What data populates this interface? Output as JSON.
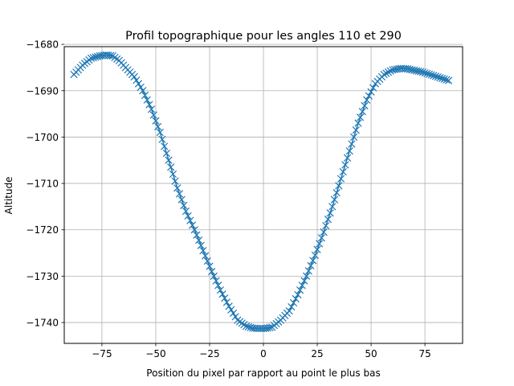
{
  "chart_data": {
    "type": "line",
    "title": "Profil topographique pour les angles 110 et 290",
    "xlabel": "Position du pixel par rapport au point le plus bas",
    "ylabel": "Altitude",
    "xlim": [
      -92.5,
      92.5
    ],
    "ylim": [
      -1744.5,
      -1680.5
    ],
    "xticks": [
      -75,
      -50,
      -25,
      0,
      25,
      50,
      75
    ],
    "xtick_labels": [
      "−75",
      "−50",
      "−25",
      "0",
      "25",
      "50",
      "75"
    ],
    "yticks": [
      -1680,
      -1690,
      -1700,
      -1710,
      -1720,
      -1730,
      -1740
    ],
    "ytick_labels": [
      "−1680",
      "−1690",
      "−1700",
      "−1710",
      "−1720",
      "−1730",
      "−1740"
    ],
    "grid": true,
    "marker": "x",
    "color": "#1f77b4",
    "key_points": {
      "x": [
        -88,
        -84,
        -80,
        -76,
        -73,
        -70,
        -67,
        -64,
        -60,
        -56,
        -52,
        -48,
        -44,
        -40,
        -36,
        -32,
        -28,
        -24,
        -20,
        -16,
        -12,
        -8,
        -5,
        -2,
        0,
        2,
        4,
        8,
        12,
        16,
        20,
        24,
        28,
        32,
        36,
        40,
        44,
        48,
        52,
        56,
        60,
        64,
        67,
        70,
        74,
        78,
        82,
        86
      ],
      "y": [
        -1686.5,
        -1684.5,
        -1683.0,
        -1682.5,
        -1682.3,
        -1682.5,
        -1683.5,
        -1685.0,
        -1687.0,
        -1690.0,
        -1694.0,
        -1699.0,
        -1705.0,
        -1711.0,
        -1716.0,
        -1720.0,
        -1724.5,
        -1729.0,
        -1733.0,
        -1736.5,
        -1739.5,
        -1740.8,
        -1741.2,
        -1741.3,
        -1741.3,
        -1741.2,
        -1741.0,
        -1739.5,
        -1737.5,
        -1734.0,
        -1730.0,
        -1725.5,
        -1720.5,
        -1715.0,
        -1709.0,
        -1703.0,
        -1697.0,
        -1692.0,
        -1688.5,
        -1686.5,
        -1685.5,
        -1685.2,
        -1685.3,
        -1685.6,
        -1686.0,
        -1686.6,
        -1687.2,
        -1687.8
      ]
    }
  }
}
